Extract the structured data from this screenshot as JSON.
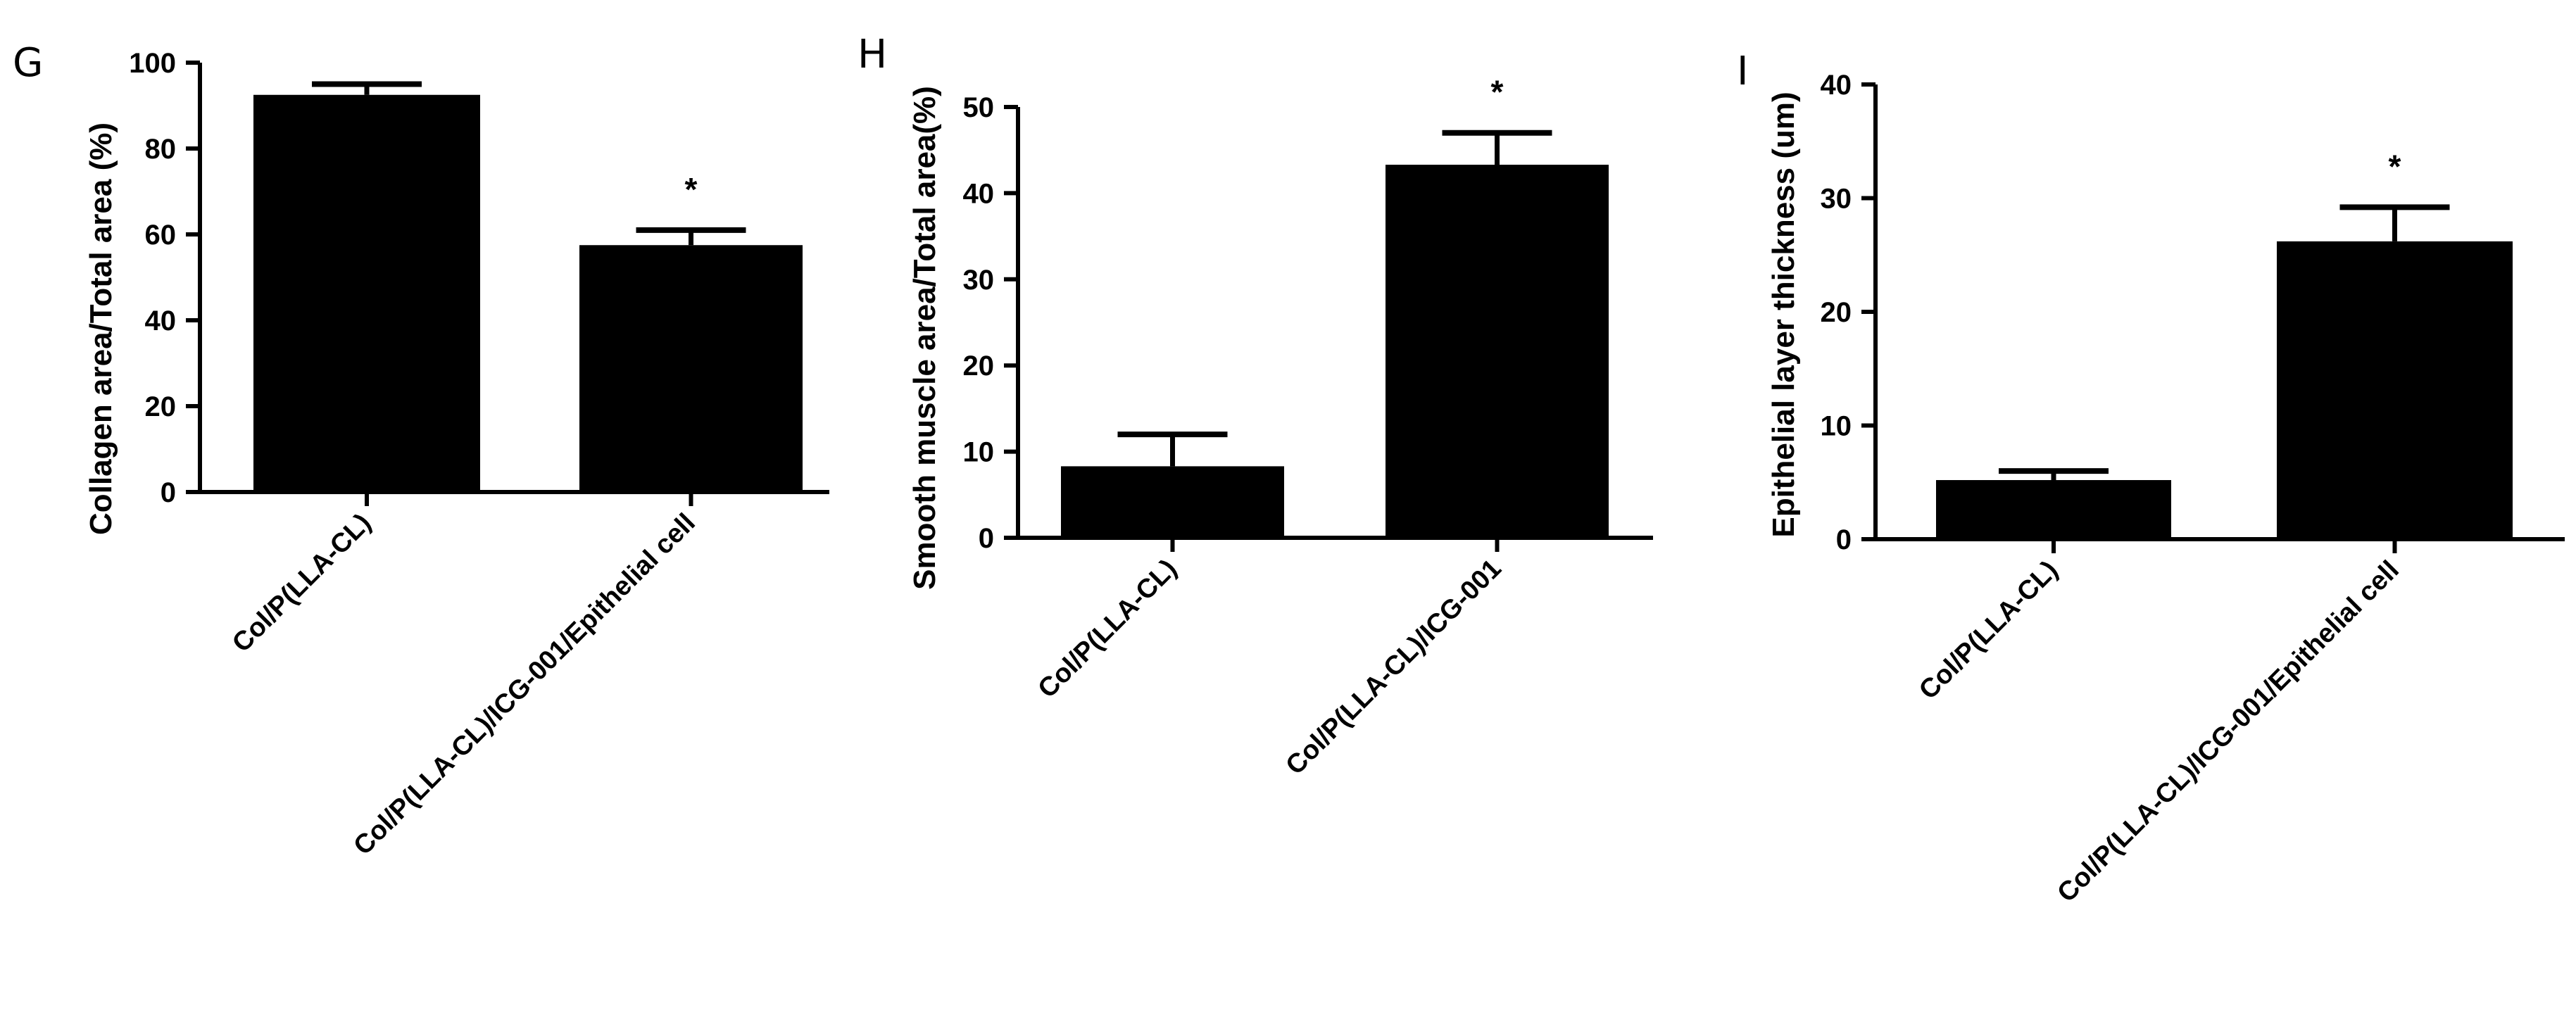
{
  "colors": {
    "bar": "#000000",
    "axis": "#000000",
    "background": "#ffffff"
  },
  "chart_data": [
    {
      "panel": "G",
      "type": "bar",
      "ylabel": "Collagen area/Total area (%)",
      "ylim": [
        0,
        100
      ],
      "yticks": [
        "0",
        "20",
        "40",
        "60",
        "80",
        "100"
      ],
      "categories": [
        "Col/P(LLA-CL)",
        "Col/P(LLA-CL)/ICG-001/Epithelial cell"
      ],
      "values": [
        92.5,
        57.5
      ],
      "errors": [
        2.5,
        3.5
      ],
      "annotations": [
        "",
        "*"
      ],
      "grid": false,
      "legend": "none"
    },
    {
      "panel": "H",
      "type": "bar",
      "ylabel": "Smooth muscle area/Total area(%)",
      "ylim": [
        0,
        50
      ],
      "yticks": [
        "0",
        "10",
        "20",
        "30",
        "40",
        "50"
      ],
      "categories": [
        "Col/P(LLA-CL)",
        "Col/P(LLA-CL)/ICG-001"
      ],
      "values": [
        8.3,
        43.3
      ],
      "errors": [
        3.7,
        3.7
      ],
      "annotations": [
        "",
        "*"
      ],
      "grid": false,
      "legend": "none"
    },
    {
      "panel": "I",
      "type": "bar",
      "ylabel": "Epithelial layer thickness (um)",
      "ylim": [
        0,
        40
      ],
      "yticks": [
        "0",
        "10",
        "20",
        "30",
        "40"
      ],
      "categories": [
        "Col/P(LLA-CL)",
        "Col/P(LLA-CL)/ICG-001/Epithelial cell"
      ],
      "values": [
        5.2,
        26.2
      ],
      "errors": [
        0.8,
        3.0
      ],
      "annotations": [
        "",
        "*"
      ],
      "grid": false,
      "legend": "none"
    }
  ]
}
